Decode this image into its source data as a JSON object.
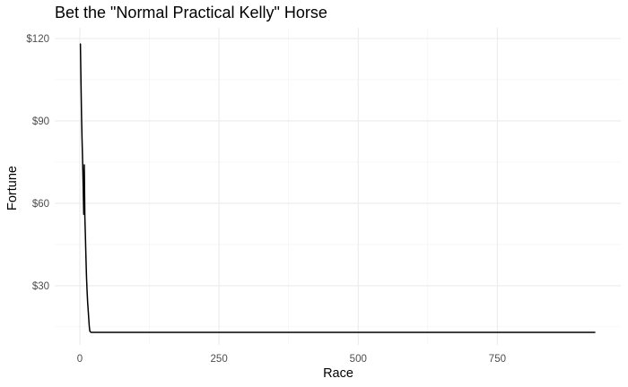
{
  "chart_data": {
    "type": "line",
    "title": "Bet the \"Normal Practical Kelly\" Horse",
    "xlabel": "Race",
    "ylabel": "Fortune",
    "xlim": [
      0,
      925
    ],
    "ylim": [
      13,
      120
    ],
    "x_ticks": [
      0,
      250,
      500,
      750
    ],
    "x_tick_labels": [
      "0",
      "250",
      "500",
      "750"
    ],
    "y_ticks": [
      30,
      60,
      90,
      120
    ],
    "y_tick_labels": [
      "$30",
      "$60",
      "$90",
      "$120"
    ],
    "grid": true,
    "legend": "none",
    "series": [
      {
        "color": "#000000",
        "x": [
          1,
          2,
          3,
          4,
          5,
          6,
          7,
          8,
          9,
          10,
          11,
          12,
          13,
          14,
          15,
          16,
          17,
          18,
          20,
          40,
          100,
          250,
          500,
          750,
          925
        ],
        "y": [
          118,
          105,
          92,
          83,
          75,
          66,
          56,
          74,
          55,
          48,
          40,
          33,
          28,
          24,
          21,
          18,
          15,
          13.4,
          13,
          13,
          13,
          13,
          13,
          13,
          13
        ]
      }
    ]
  }
}
